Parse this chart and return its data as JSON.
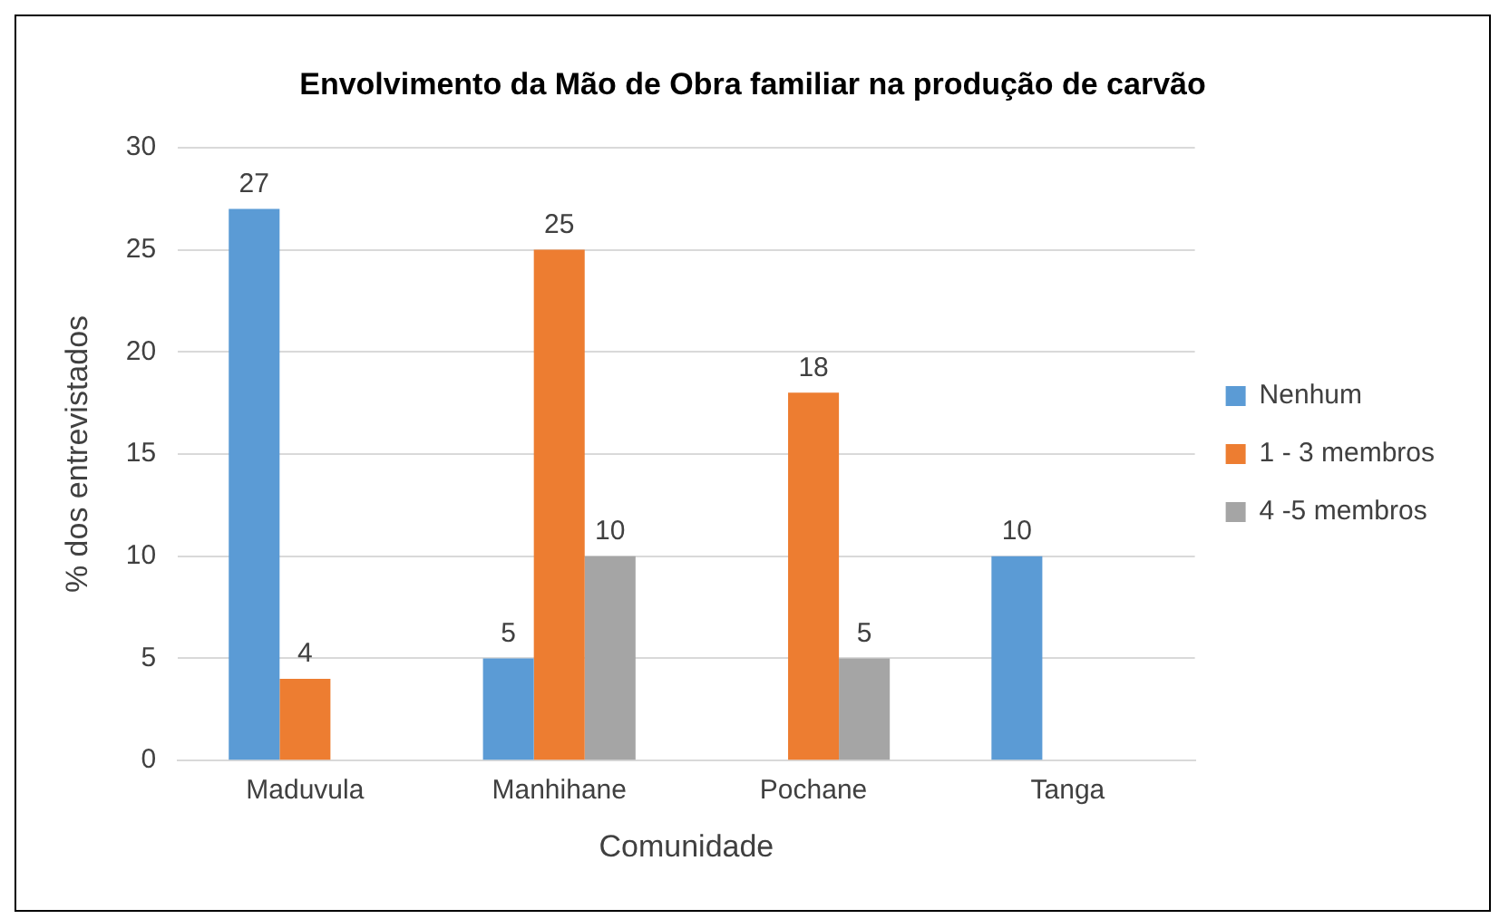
{
  "chart_data": {
    "type": "bar",
    "title": "Envolvimento da Mão de Obra familiar na produção de carvão",
    "xlabel": "Comunidade",
    "ylabel": "% dos entrevistados",
    "categories": [
      "Maduvula",
      "Manhihane",
      "Pochane",
      "Tanga"
    ],
    "series": [
      {
        "name": "Nenhum",
        "color": "#5b9bd5",
        "values": [
          27,
          5,
          null,
          10
        ]
      },
      {
        "name": "1 - 3 membros",
        "color": "#ed7d31",
        "values": [
          4,
          25,
          18,
          null
        ]
      },
      {
        "name": "4 -5 membros",
        "color": "#a5a5a5",
        "values": [
          null,
          10,
          5,
          null
        ]
      }
    ],
    "ylim": [
      0,
      30
    ],
    "yticks": [
      0,
      5,
      10,
      15,
      20,
      25,
      30
    ],
    "grid": "y",
    "legend": "right",
    "data_labels": true
  }
}
